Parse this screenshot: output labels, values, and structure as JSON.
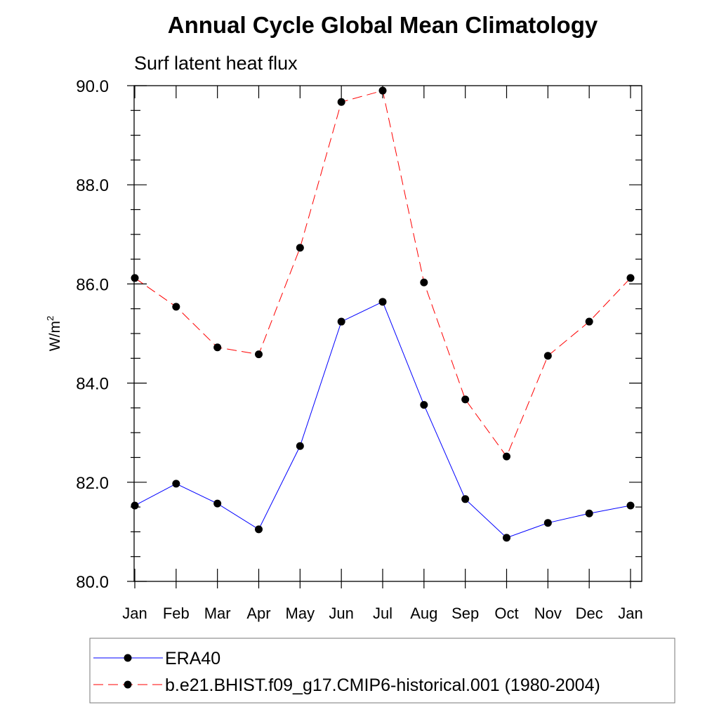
{
  "chart_data": {
    "type": "line",
    "title": "Annual Cycle Global Mean Climatology",
    "subtitle": "Surf latent heat flux",
    "xlabel": "",
    "ylabel": "W/m",
    "ylabel_sup": "2",
    "categories": [
      "Jan",
      "Feb",
      "Mar",
      "Apr",
      "May",
      "Jun",
      "Jul",
      "Aug",
      "Sep",
      "Oct",
      "Nov",
      "Dec",
      "Jan"
    ],
    "ylim": [
      80,
      90
    ],
    "yticks": [
      80,
      82,
      84,
      86,
      88,
      90
    ],
    "ytick_labels": [
      "80.0",
      "82.0",
      "84.0",
      "86.0",
      "88.0",
      "90.0"
    ],
    "yminor_step": 0.5,
    "grid": false,
    "legend_position": "bottom",
    "series": [
      {
        "name": "ERA40",
        "color": "#0000ff",
        "dash": "solid",
        "values": [
          81.53,
          81.97,
          81.57,
          81.05,
          82.73,
          85.24,
          85.64,
          83.56,
          81.66,
          80.88,
          81.18,
          81.37,
          81.53
        ]
      },
      {
        "name": "b.e21.BHIST.f09_g17.CMIP6-historical.001 (1980-2004)",
        "color": "#ff0000",
        "dash": "dashed",
        "values": [
          86.12,
          85.54,
          84.72,
          84.58,
          86.73,
          89.67,
          89.9,
          86.03,
          83.67,
          82.52,
          84.55,
          85.24,
          86.12
        ]
      }
    ]
  }
}
